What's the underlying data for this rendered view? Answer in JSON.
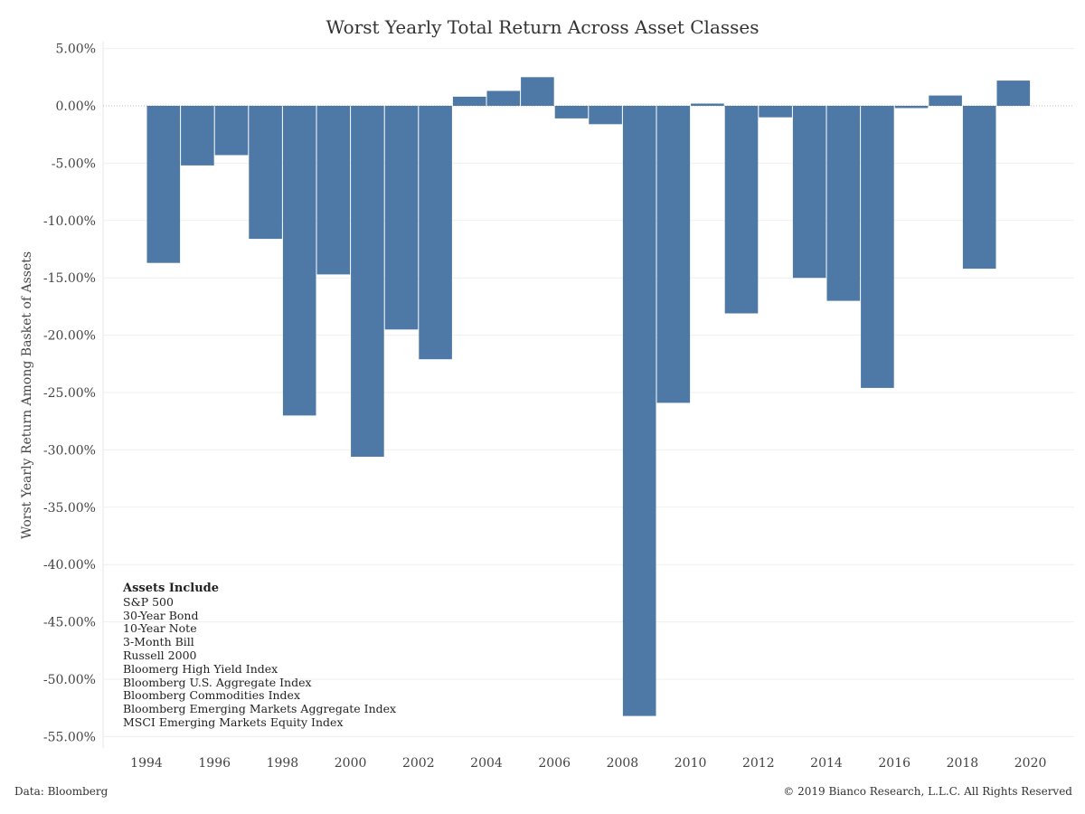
{
  "chart_data": {
    "type": "bar",
    "title": "Worst Yearly Total Return Across Asset Classes",
    "xlabel": "",
    "ylabel": "Worst Yearly Return Among Basket of Assets",
    "categories": [
      1994,
      1995,
      1996,
      1997,
      1998,
      1999,
      2000,
      2001,
      2002,
      2003,
      2004,
      2005,
      2006,
      2007,
      2008,
      2009,
      2010,
      2011,
      2012,
      2013,
      2014,
      2015,
      2016,
      2017,
      2018,
      2019
    ],
    "values": [
      -13.7,
      -5.2,
      -4.3,
      -11.6,
      -27.0,
      -14.7,
      -30.6,
      -19.5,
      -22.1,
      0.8,
      1.3,
      2.5,
      -1.1,
      -1.6,
      -53.2,
      -25.9,
      0.2,
      -18.1,
      -1.0,
      -15.0,
      -17.0,
      -24.6,
      -0.2,
      0.9,
      -14.2,
      2.2
    ],
    "ylim": [
      -56.0,
      5.0
    ],
    "yticks": [
      5,
      0,
      -5,
      -10,
      -15,
      -20,
      -25,
      -30,
      -35,
      -40,
      -45,
      -50,
      -55
    ],
    "ytick_labels": [
      "5.00%",
      "0.00%",
      "-5.00%",
      "-10.00%",
      "-15.00%",
      "-20.00%",
      "-25.00%",
      "-30.00%",
      "-35.00%",
      "-40.00%",
      "-45.00%",
      "-50.00%",
      "-55.00%"
    ],
    "xticks": [
      1994,
      1996,
      1998,
      2000,
      2002,
      2004,
      2006,
      2008,
      2010,
      2012,
      2014,
      2016,
      2018,
      2020
    ],
    "xtick_labels": [
      "1994",
      "1996",
      "1998",
      "2000",
      "2002",
      "2004",
      "2006",
      "2008",
      "2010",
      "2012",
      "2014",
      "2016",
      "2018",
      "2020"
    ],
    "grid": true,
    "bar_color": "#4e79a7"
  },
  "legend": {
    "heading": "Assets Include",
    "items": [
      "S&P 500",
      "30-Year Bond",
      "10-Year Note",
      "3-Month Bill",
      "Russell 2000",
      "Bloomerg High Yield Index",
      "Bloomberg U.S. Aggregate Index",
      "Bloomberg Commodities Index",
      "Bloomberg Emerging Markets Aggregate Index",
      "MSCI Emerging Markets Equity Index"
    ]
  },
  "footer": {
    "source": "Data: Bloomberg",
    "copyright": "© 2019 Bianco Research, L.L.C. All Rights Reserved"
  }
}
